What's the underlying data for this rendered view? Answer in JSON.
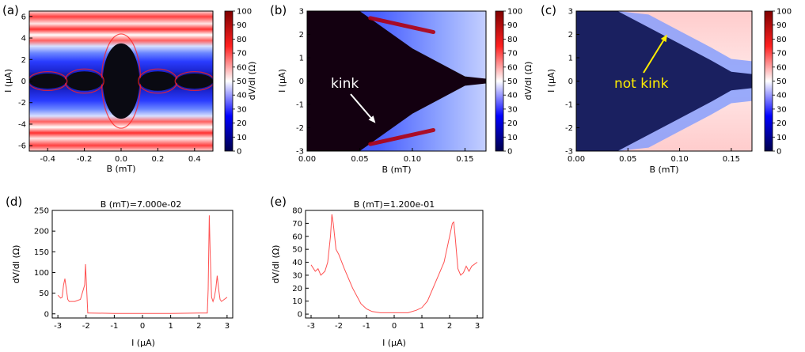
{
  "figure": {
    "panel_labels": [
      "(a)",
      "(b)",
      "(c)",
      "(d)",
      "(e)"
    ],
    "annotations": {
      "kink": "kink",
      "not_kink": "not kink"
    }
  },
  "chart_data": [
    {
      "type": "heatmap",
      "panel": "(a)",
      "xlabel": "B (mT)",
      "ylabel": "I (μA)",
      "xlim": [
        -0.5,
        0.5
      ],
      "ylim": [
        -6.5,
        6.5
      ],
      "xticks": [
        "-0.4",
        "-0.2",
        "0.0",
        "0.2",
        "0.4"
      ],
      "xtick_values": [
        -0.4,
        -0.2,
        0.0,
        0.2,
        0.4
      ],
      "yticks": [
        "6",
        "4",
        "2",
        "0",
        "-2",
        "-4",
        "-6"
      ],
      "ytick_values": [
        6,
        4,
        2,
        0,
        -2,
        -4,
        -6
      ],
      "colorbar": {
        "label": "dV/dI (Ω)",
        "min": 0,
        "max": 100,
        "ticks": [
          "100",
          "90",
          "80",
          "70",
          "60",
          "50",
          "40",
          "30",
          "20",
          "10",
          "0"
        ]
      },
      "lobes": [
        {
          "center_B": 0.0,
          "halfwidth_B": 0.1,
          "Ic": 3.5
        },
        {
          "center_B": -0.2,
          "halfwidth_B": 0.1,
          "Ic": 0.9
        },
        {
          "center_B": 0.2,
          "halfwidth_B": 0.1,
          "Ic": 0.9
        },
        {
          "center_B": -0.4,
          "halfwidth_B": 0.1,
          "Ic": 0.7
        },
        {
          "center_B": 0.4,
          "halfwidth_B": 0.1,
          "Ic": 0.7
        }
      ]
    },
    {
      "type": "heatmap",
      "panel": "(b)",
      "xlabel": "B (mT)",
      "ylabel": "I (μA)",
      "xlim": [
        0.0,
        0.17
      ],
      "ylim": [
        -3,
        3
      ],
      "xticks": [
        "0.00",
        "0.05",
        "0.10",
        "0.15"
      ],
      "xtick_values": [
        0.0,
        0.05,
        0.1,
        0.15
      ],
      "yticks": [
        "3",
        "2",
        "1",
        "0",
        "-1",
        "-2",
        "-3"
      ],
      "ytick_values": [
        3,
        2,
        1,
        0,
        -1,
        -2,
        -3
      ],
      "colorbar": {
        "label": "dV/dI (Ω)",
        "min": 0,
        "max": 100,
        "ticks": [
          "100",
          "90",
          "80",
          "70",
          "60",
          "50",
          "40",
          "30",
          "20",
          "10",
          "0"
        ]
      },
      "critical_current_edge": {
        "B": [
          0.0,
          0.05,
          0.1,
          0.15,
          0.17
        ],
        "Ic": [
          3.0,
          3.0,
          1.4,
          0.2,
          0.1
        ]
      },
      "ridge": {
        "B": [
          0.06,
          0.09,
          0.12
        ],
        "I": [
          2.7,
          2.4,
          2.1
        ]
      },
      "annotation": {
        "text": "kink",
        "target_B": 0.065,
        "target_I": -1.8
      }
    },
    {
      "type": "heatmap",
      "panel": "(c)",
      "xlabel": "B (mT)",
      "ylabel": "I (μA)",
      "xlim": [
        0.0,
        0.17
      ],
      "ylim": [
        -3,
        3
      ],
      "xticks": [
        "0.00",
        "0.05",
        "0.10",
        "0.15"
      ],
      "xtick_values": [
        0.0,
        0.05,
        0.1,
        0.15
      ],
      "yticks": [
        "3",
        "2",
        "1",
        "0",
        "-1",
        "-2",
        "-3"
      ],
      "ytick_values": [
        3,
        2,
        1,
        0,
        -1,
        -2,
        -3
      ],
      "colorbar": {
        "label": "dV/dI (Ω)",
        "min": 0,
        "max": 100,
        "ticks": [
          "100",
          "90",
          "80",
          "70",
          "60",
          "50",
          "40",
          "30",
          "20",
          "10",
          "0"
        ]
      },
      "critical_current_edge": {
        "B": [
          0.04,
          0.07,
          0.1,
          0.13,
          0.15,
          0.17
        ],
        "Ic": [
          3.0,
          2.3,
          1.6,
          0.9,
          0.4,
          0.3
        ]
      },
      "annotation": {
        "text": "not kink",
        "target_B": 0.088,
        "target_I": 2.0
      }
    },
    {
      "type": "line",
      "panel": "(d)",
      "title": "B (mT)=7.000e-02",
      "xlabel": "I (μA)",
      "ylabel": "dV/dI (Ω)",
      "xlim": [
        -3.2,
        3.2
      ],
      "ylim": [
        -10,
        250
      ],
      "xticks": [
        "-3",
        "-2",
        "-1",
        "0",
        "1",
        "2",
        "3"
      ],
      "xtick_values": [
        -3,
        -2,
        -1,
        0,
        1,
        2,
        3
      ],
      "yticks": [
        "250",
        "200",
        "150",
        "100",
        "50",
        "0"
      ],
      "ytick_values": [
        250,
        200,
        150,
        100,
        50,
        0
      ],
      "x": [
        -3.0,
        -2.9,
        -2.85,
        -2.8,
        -2.75,
        -2.7,
        -2.65,
        -2.6,
        -2.4,
        -2.2,
        -2.05,
        -2.02,
        -1.98,
        -1.94,
        -1.9,
        -1.0,
        0.0,
        1.0,
        2.0,
        2.3,
        2.33,
        2.37,
        2.4,
        2.45,
        2.5,
        2.55,
        2.6,
        2.65,
        2.7,
        2.75,
        2.8,
        2.9,
        3.0
      ],
      "y": [
        45,
        38,
        40,
        70,
        85,
        60,
        35,
        30,
        30,
        35,
        70,
        120,
        60,
        2,
        2,
        1,
        1,
        1,
        2,
        2,
        60,
        238,
        150,
        40,
        30,
        40,
        60,
        92,
        60,
        35,
        30,
        35,
        40
      ]
    },
    {
      "type": "line",
      "panel": "(e)",
      "title": "B (mT)=1.200e-01",
      "xlabel": "I (μA)",
      "ylabel": "dV/dI (Ω)",
      "xlim": [
        -3.2,
        3.2
      ],
      "ylim": [
        -3,
        80
      ],
      "xticks": [
        "-3",
        "-2",
        "-1",
        "0",
        "1",
        "2",
        "3"
      ],
      "xtick_values": [
        -3,
        -2,
        -1,
        0,
        1,
        2,
        3
      ],
      "yticks": [
        "80",
        "70",
        "60",
        "50",
        "40",
        "30",
        "20",
        "10",
        "0"
      ],
      "ytick_values": [
        80,
        70,
        60,
        50,
        40,
        30,
        20,
        10,
        0
      ],
      "x": [
        -3.0,
        -2.85,
        -2.75,
        -2.65,
        -2.5,
        -2.4,
        -2.3,
        -2.25,
        -2.2,
        -2.1,
        -2.0,
        -1.8,
        -1.5,
        -1.2,
        -1.0,
        -0.8,
        -0.5,
        0.0,
        0.5,
        0.8,
        1.0,
        1.2,
        1.4,
        1.6,
        1.8,
        1.9,
        2.0,
        2.1,
        2.15,
        2.2,
        2.3,
        2.4,
        2.5,
        2.6,
        2.7,
        2.8,
        3.0
      ],
      "y": [
        38,
        33,
        35,
        30,
        33,
        40,
        60,
        77,
        70,
        50,
        46,
        35,
        20,
        8,
        4,
        2,
        1,
        1,
        1,
        3,
        5,
        10,
        20,
        30,
        40,
        50,
        60,
        70,
        71,
        60,
        35,
        30,
        32,
        37,
        33,
        37,
        40
      ]
    }
  ]
}
